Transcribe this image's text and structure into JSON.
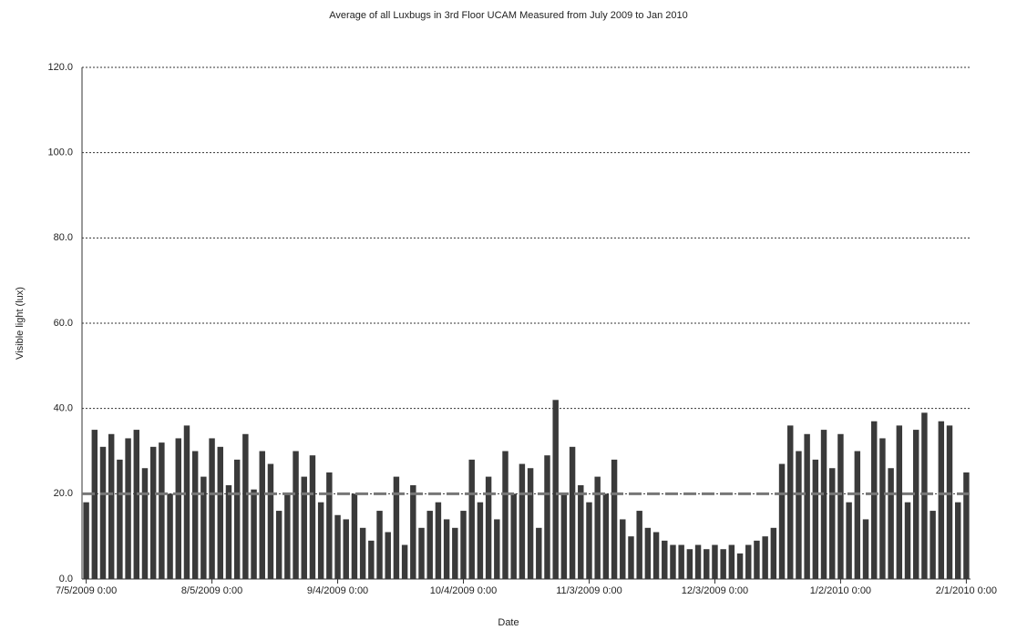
{
  "chart_data": {
    "type": "bar",
    "title": "Average of all Luxbugs in 3rd Floor UCAM Measured from July 2009 to Jan 2010",
    "x_label": "Date",
    "y_label": "Visible light (lux)",
    "categories": [
      "7/5/2009 0:00",
      null,
      null,
      null,
      null,
      null,
      null,
      null,
      null,
      null,
      null,
      null,
      null,
      null,
      null,
      "8/5/2009 0:00",
      null,
      null,
      null,
      null,
      null,
      null,
      null,
      null,
      null,
      null,
      null,
      null,
      null,
      null,
      "9/4/2009 0:00",
      null,
      null,
      null,
      null,
      null,
      null,
      null,
      null,
      null,
      null,
      null,
      null,
      null,
      null,
      "10/4/2009 0:00",
      null,
      null,
      null,
      null,
      null,
      null,
      null,
      null,
      null,
      null,
      null,
      null,
      null,
      null,
      "11/3/2009 0:00",
      null,
      null,
      null,
      null,
      null,
      null,
      null,
      null,
      null,
      null,
      null,
      null,
      null,
      null,
      "12/3/2009 0:00",
      null,
      null,
      null,
      null,
      null,
      null,
      null,
      null,
      null,
      null,
      null,
      null,
      null,
      null,
      "1/2/2010 0:00",
      null,
      null,
      null,
      null,
      null,
      null,
      null,
      null,
      null,
      null,
      null,
      null,
      null,
      null,
      "2/1/2010 0:00"
    ],
    "values": [
      18,
      35,
      31,
      34,
      28,
      33,
      35,
      26,
      31,
      32,
      20,
      33,
      36,
      30,
      24,
      33,
      31,
      22,
      28,
      34,
      21,
      30,
      27,
      16,
      20,
      30,
      24,
      29,
      18,
      25,
      15,
      14,
      20,
      12,
      9,
      16,
      11,
      24,
      8,
      22,
      12,
      16,
      18,
      14,
      12,
      16,
      28,
      18,
      24,
      14,
      30,
      20,
      27,
      26,
      12,
      29,
      42,
      20,
      31,
      22,
      18,
      24,
      20,
      28,
      14,
      10,
      16,
      12,
      11,
      9,
      8,
      8,
      7,
      8,
      7,
      8,
      7,
      8,
      6,
      8,
      9,
      10,
      12,
      27,
      36,
      30,
      34,
      28,
      35,
      26,
      34,
      18,
      30,
      14,
      37,
      33,
      26,
      36,
      18,
      35,
      39,
      16,
      37,
      36,
      18,
      25
    ],
    "color": "#3a3a3a",
    "threshold": 20,
    "threshold_color": "#777777",
    "ylim": [
      0,
      120
    ],
    "yticks": [
      {
        "value": 0,
        "label": "0.0"
      },
      {
        "value": 20,
        "label": "20.0"
      },
      {
        "value": 40,
        "label": "40.0"
      },
      {
        "value": 60,
        "label": "60.0"
      },
      {
        "value": 80,
        "label": "80.0"
      },
      {
        "value": 100,
        "label": "100.0"
      },
      {
        "value": 120,
        "label": "120.0"
      }
    ],
    "grid": true
  }
}
